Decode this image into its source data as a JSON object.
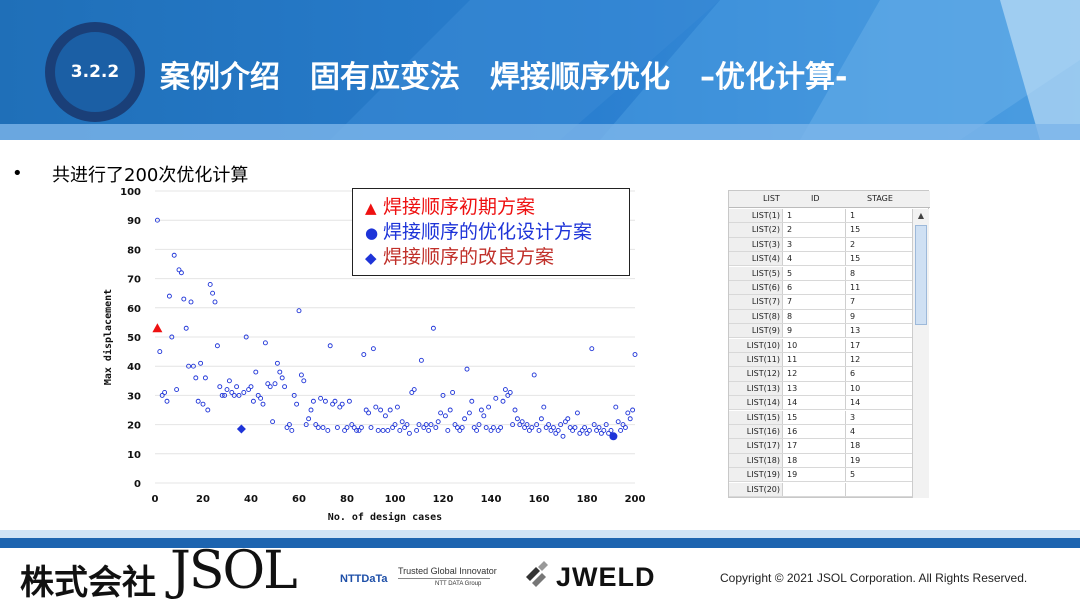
{
  "header": {
    "section_number": "3.2.2",
    "title": "案例介绍　固有应变法　焊接顺序优化　–优化计算-"
  },
  "bullet": {
    "marker": "•",
    "text": "共进行了200次优化计算"
  },
  "legend": {
    "items": [
      {
        "marker": "▲",
        "label": "焊接顺序初期方案",
        "color": "#ee1111"
      },
      {
        "marker": "●",
        "label": "焊接顺序的优化设计方案",
        "color": "#1e34d8"
      },
      {
        "marker": "◆",
        "label": "焊接顺序的改良方案",
        "color": "#c0302a"
      }
    ]
  },
  "chart_data": {
    "type": "scatter",
    "xlabel": "No. of design cases",
    "ylabel": "Max displacement",
    "xlim": [
      0,
      200
    ],
    "ylim": [
      0,
      100
    ],
    "xticks": [
      0,
      20,
      40,
      60,
      80,
      100,
      120,
      140,
      160,
      180,
      200
    ],
    "yticks": [
      0,
      10,
      20,
      30,
      40,
      50,
      60,
      70,
      80,
      90,
      100
    ],
    "grid": "horizontal",
    "series": [
      {
        "marker": "open-circle",
        "color": "#1e34d8",
        "points": [
          [
            1,
            90
          ],
          [
            2,
            45
          ],
          [
            3,
            30
          ],
          [
            4,
            31
          ],
          [
            5,
            28
          ],
          [
            6,
            64
          ],
          [
            7,
            50
          ],
          [
            8,
            78
          ],
          [
            9,
            32
          ],
          [
            10,
            73
          ],
          [
            11,
            72
          ],
          [
            12,
            63
          ],
          [
            13,
            53
          ],
          [
            14,
            40
          ],
          [
            15,
            62
          ],
          [
            16,
            40
          ],
          [
            17,
            36
          ],
          [
            18,
            28
          ],
          [
            19,
            41
          ],
          [
            20,
            27
          ],
          [
            21,
            36
          ],
          [
            22,
            25
          ],
          [
            23,
            68
          ],
          [
            24,
            65
          ],
          [
            25,
            62
          ],
          [
            26,
            47
          ],
          [
            27,
            33
          ],
          [
            28,
            30
          ],
          [
            29,
            30
          ],
          [
            30,
            32
          ],
          [
            31,
            35
          ],
          [
            32,
            31
          ],
          [
            33,
            30
          ],
          [
            34,
            33
          ],
          [
            35,
            30
          ],
          [
            37,
            31
          ],
          [
            38,
            50
          ],
          [
            39,
            32
          ],
          [
            40,
            33
          ],
          [
            41,
            28
          ],
          [
            42,
            38
          ],
          [
            43,
            30
          ],
          [
            44,
            29
          ],
          [
            45,
            27
          ],
          [
            46,
            48
          ],
          [
            47,
            34
          ],
          [
            48,
            33
          ],
          [
            49,
            21
          ],
          [
            50,
            34
          ],
          [
            51,
            41
          ],
          [
            52,
            38
          ],
          [
            53,
            36
          ],
          [
            54,
            33
          ],
          [
            55,
            19
          ],
          [
            56,
            20
          ],
          [
            57,
            18
          ],
          [
            58,
            30
          ],
          [
            59,
            27
          ],
          [
            60,
            59
          ],
          [
            61,
            37
          ],
          [
            62,
            35
          ],
          [
            63,
            20
          ],
          [
            64,
            22
          ],
          [
            65,
            25
          ],
          [
            66,
            28
          ],
          [
            67,
            20
          ],
          [
            68,
            19
          ],
          [
            69,
            29
          ],
          [
            70,
            19
          ],
          [
            71,
            28
          ],
          [
            72,
            18
          ],
          [
            73,
            47
          ],
          [
            74,
            27
          ],
          [
            75,
            28
          ],
          [
            76,
            19
          ],
          [
            77,
            26
          ],
          [
            78,
            27
          ],
          [
            79,
            18
          ],
          [
            80,
            19
          ],
          [
            81,
            28
          ],
          [
            82,
            20
          ],
          [
            83,
            19
          ],
          [
            84,
            18
          ],
          [
            85,
            18
          ],
          [
            86,
            19
          ],
          [
            87,
            44
          ],
          [
            88,
            25
          ],
          [
            89,
            24
          ],
          [
            90,
            19
          ],
          [
            91,
            46
          ],
          [
            92,
            26
          ],
          [
            93,
            18
          ],
          [
            94,
            25
          ],
          [
            95,
            18
          ],
          [
            96,
            23
          ],
          [
            97,
            18
          ],
          [
            98,
            25
          ],
          [
            99,
            19
          ],
          [
            100,
            20
          ],
          [
            101,
            26
          ],
          [
            102,
            18
          ],
          [
            103,
            21
          ],
          [
            104,
            19
          ],
          [
            105,
            20
          ],
          [
            106,
            17
          ],
          [
            107,
            31
          ],
          [
            108,
            32
          ],
          [
            109,
            18
          ],
          [
            110,
            20
          ],
          [
            111,
            42
          ],
          [
            112,
            19
          ],
          [
            113,
            20
          ],
          [
            114,
            18
          ],
          [
            115,
            20
          ],
          [
            116,
            53
          ],
          [
            117,
            19
          ],
          [
            118,
            21
          ],
          [
            119,
            24
          ],
          [
            120,
            30
          ],
          [
            121,
            23
          ],
          [
            122,
            18
          ],
          [
            123,
            25
          ],
          [
            124,
            31
          ],
          [
            125,
            20
          ],
          [
            126,
            19
          ],
          [
            127,
            18
          ],
          [
            128,
            19
          ],
          [
            129,
            22
          ],
          [
            130,
            39
          ],
          [
            131,
            24
          ],
          [
            132,
            28
          ],
          [
            133,
            19
          ],
          [
            134,
            18
          ],
          [
            135,
            20
          ],
          [
            136,
            25
          ],
          [
            137,
            23
          ],
          [
            138,
            19
          ],
          [
            139,
            26
          ],
          [
            140,
            18
          ],
          [
            141,
            19
          ],
          [
            142,
            29
          ],
          [
            143,
            18
          ],
          [
            144,
            19
          ],
          [
            145,
            28
          ],
          [
            146,
            32
          ],
          [
            147,
            30
          ],
          [
            148,
            31
          ],
          [
            149,
            20
          ],
          [
            150,
            25
          ],
          [
            151,
            22
          ],
          [
            152,
            20
          ],
          [
            153,
            21
          ],
          [
            154,
            19
          ],
          [
            155,
            20
          ],
          [
            156,
            18
          ],
          [
            157,
            19
          ],
          [
            158,
            37
          ],
          [
            159,
            20
          ],
          [
            160,
            18
          ],
          [
            161,
            22
          ],
          [
            162,
            26
          ],
          [
            163,
            19
          ],
          [
            164,
            20
          ],
          [
            165,
            18
          ],
          [
            166,
            19
          ],
          [
            167,
            17
          ],
          [
            168,
            18
          ],
          [
            169,
            20
          ],
          [
            170,
            16
          ],
          [
            171,
            21
          ],
          [
            172,
            22
          ],
          [
            173,
            19
          ],
          [
            174,
            18
          ],
          [
            175,
            19
          ],
          [
            176,
            24
          ],
          [
            177,
            17
          ],
          [
            178,
            18
          ],
          [
            179,
            19
          ],
          [
            180,
            17
          ],
          [
            181,
            18
          ],
          [
            182,
            46
          ],
          [
            183,
            20
          ],
          [
            184,
            18
          ],
          [
            185,
            19
          ],
          [
            186,
            17
          ],
          [
            187,
            18
          ],
          [
            188,
            20
          ],
          [
            189,
            17
          ],
          [
            190,
            18
          ],
          [
            191,
            16
          ],
          [
            192,
            26
          ],
          [
            193,
            21
          ],
          [
            194,
            18
          ],
          [
            195,
            20
          ],
          [
            196,
            19
          ],
          [
            197,
            24
          ],
          [
            198,
            22
          ],
          [
            199,
            25
          ],
          [
            200,
            44
          ]
        ]
      },
      {
        "marker": "triangle",
        "color": "#ee1111",
        "points": [
          [
            1,
            53
          ]
        ]
      },
      {
        "marker": "filled-circle",
        "color": "#1e34d8",
        "points": [
          [
            191,
            16
          ]
        ]
      },
      {
        "marker": "diamond",
        "color": "#1e34d8",
        "points": [
          [
            36,
            18.5
          ]
        ]
      }
    ]
  },
  "list_table": {
    "headers": [
      "LIST",
      "ID",
      "STAGE"
    ],
    "rows": [
      {
        "list": "LIST(1)",
        "id": "1",
        "stage": "1"
      },
      {
        "list": "LIST(2)",
        "id": "2",
        "stage": "15"
      },
      {
        "list": "LIST(3)",
        "id": "3",
        "stage": "2"
      },
      {
        "list": "LIST(4)",
        "id": "4",
        "stage": "15"
      },
      {
        "list": "LIST(5)",
        "id": "5",
        "stage": "8"
      },
      {
        "list": "LIST(6)",
        "id": "6",
        "stage": "11"
      },
      {
        "list": "LIST(7)",
        "id": "7",
        "stage": "7"
      },
      {
        "list": "LIST(8)",
        "id": "8",
        "stage": "9"
      },
      {
        "list": "LIST(9)",
        "id": "9",
        "stage": "13"
      },
      {
        "list": "LIST(10)",
        "id": "10",
        "stage": "17"
      },
      {
        "list": "LIST(11)",
        "id": "11",
        "stage": "12"
      },
      {
        "list": "LIST(12)",
        "id": "12",
        "stage": "6"
      },
      {
        "list": "LIST(13)",
        "id": "13",
        "stage": "10"
      },
      {
        "list": "LIST(14)",
        "id": "14",
        "stage": "14"
      },
      {
        "list": "LIST(15)",
        "id": "15",
        "stage": "3"
      },
      {
        "list": "LIST(16)",
        "id": "16",
        "stage": "4"
      },
      {
        "list": "LIST(17)",
        "id": "17",
        "stage": "18"
      },
      {
        "list": "LIST(18)",
        "id": "18",
        "stage": "19"
      },
      {
        "list": "LIST(19)",
        "id": "19",
        "stage": "5"
      },
      {
        "list": "LIST(20)",
        "id": "",
        "stage": ""
      }
    ],
    "scroll_up_icon": "▲"
  },
  "footer": {
    "company_jp": "株式会社",
    "company_logo": "JSOL",
    "ntt_logo": "NTTDaTa",
    "ntt_tagline": "Trusted Global Innovator",
    "ntt_group": "NTT DATA Group",
    "jweld_logo": "JWELD",
    "copyright": "Copyright © 2021  JSOL Corporation. All Rights Reserved."
  },
  "colors": {
    "header_blue": "#1f6fb8",
    "circle_border": "#1a3f78",
    "footer_blue": "#1d64b0"
  }
}
